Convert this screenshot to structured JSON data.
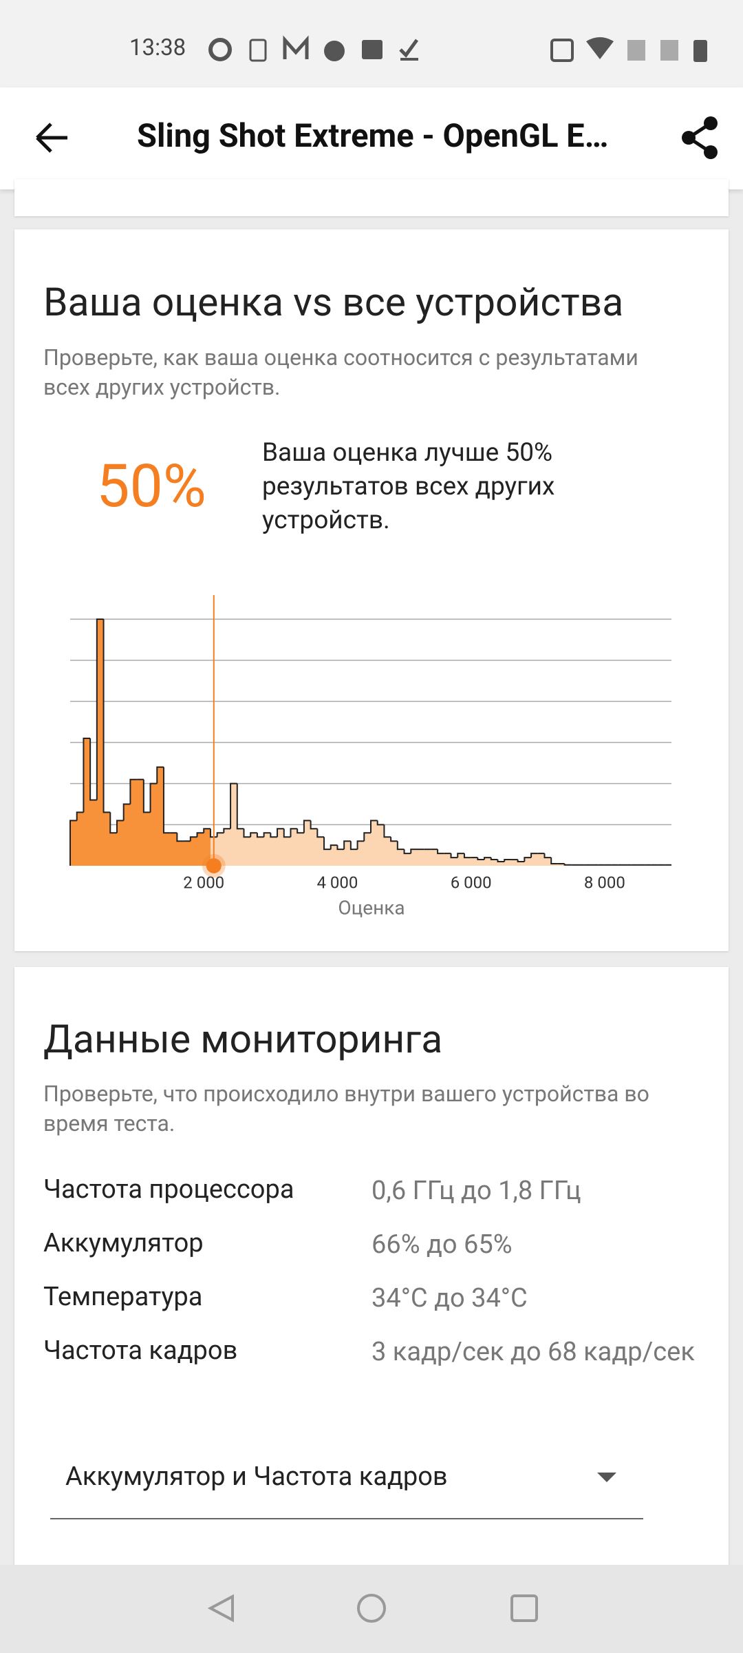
{
  "status_bar": {
    "time": "13:38"
  },
  "app_bar": {
    "title": "Sling Shot Extreme - OpenGL E…"
  },
  "score_card": {
    "title": "Ваша оценка vs все устройства",
    "subtitle": "Проверьте, как ваша оценка соотносится с результатами всех других устройств.",
    "percentile": "50%",
    "description": "Ваша оценка лучше 50% результатов всех других устройств."
  },
  "chart_data": {
    "type": "histogram",
    "bins": [
      0,
      100,
      200,
      300,
      400,
      500,
      600,
      700,
      800,
      900,
      1000,
      1100,
      1200,
      1300,
      1400,
      1500,
      1600,
      1700,
      1800,
      1900,
      2000,
      2100,
      2200,
      2300,
      2400,
      2500,
      2600,
      2700,
      2800,
      2900,
      3000,
      3100,
      3200,
      3300,
      3400,
      3500,
      3600,
      3700,
      3800,
      3900,
      4000,
      4100,
      4200,
      4300,
      4400,
      4500,
      4600,
      4700,
      4800,
      4900,
      5000,
      5100,
      5200,
      5300,
      5400,
      5500,
      5600,
      5700,
      5800,
      5900,
      6000,
      6100,
      6200,
      6300,
      6400,
      6500,
      6600,
      6700,
      6800,
      6900,
      7000,
      7100,
      7200,
      7300,
      7400,
      7500,
      7600,
      7700,
      7800,
      7900,
      8000,
      8100,
      8200,
      8300,
      8400,
      8500,
      8600,
      8700,
      8800,
      8900,
      9000
    ],
    "values": [
      1.1,
      1.3,
      3.1,
      1.6,
      6.0,
      1.3,
      0.8,
      1.1,
      1.5,
      2.1,
      2.1,
      1.3,
      2.0,
      2.4,
      0.8,
      0.8,
      0.6,
      0.6,
      0.7,
      0.8,
      0.9,
      0.7,
      0.8,
      0.9,
      2.0,
      0.9,
      0.7,
      0.8,
      0.7,
      0.8,
      0.7,
      0.9,
      0.7,
      0.9,
      0.8,
      1.1,
      0.9,
      0.7,
      0.4,
      0.5,
      0.4,
      0.6,
      0.4,
      0.6,
      0.8,
      1.1,
      1.0,
      0.7,
      0.6,
      0.4,
      0.3,
      0.4,
      0.4,
      0.4,
      0.4,
      0.3,
      0.3,
      0.2,
      0.3,
      0.2,
      0.2,
      0.15,
      0.2,
      0.15,
      0.1,
      0.15,
      0.15,
      0.1,
      0.2,
      0.3,
      0.3,
      0.2,
      0.05,
      0.05,
      0.02,
      0.02,
      0.02,
      0.02,
      0.02,
      0.02,
      0.02,
      0.02,
      0.02,
      0.02,
      0.02,
      0.02,
      0.02,
      0.02,
      0.02,
      0.02
    ],
    "highlight_x": 2150,
    "below_color": "#f7923a",
    "above_color": "#fcd5b3",
    "highlight_color": "#f47e20",
    "xlim": [
      0,
      9000
    ],
    "ylim": [
      0,
      6
    ],
    "xticks": [
      {
        "value": 2000,
        "label": "2 000"
      },
      {
        "value": 4000,
        "label": "4 000"
      },
      {
        "value": 6000,
        "label": "6 000"
      },
      {
        "value": 8000,
        "label": "8 000"
      }
    ],
    "yticks": [
      1,
      2,
      3,
      4,
      5,
      6
    ],
    "show_ytick_labels": false,
    "grid": true,
    "xlabel": "Оценка"
  },
  "monitoring": {
    "title": "Данные мониторинга",
    "subtitle": "Проверьте, что происходило внутри вашего устройства во время теста.",
    "rows": [
      [
        "Частота процессора",
        "0,6 ГГц до 1,8 ГГц"
      ],
      [
        "Аккумулятор",
        "66% до 65%"
      ],
      [
        "Температура",
        "34°C до 34°C"
      ],
      [
        "Частота кадров",
        "3 кадр/сек до 68 кадр/сек"
      ]
    ],
    "dropdown": "Аккумулятор и Частота кадров"
  }
}
